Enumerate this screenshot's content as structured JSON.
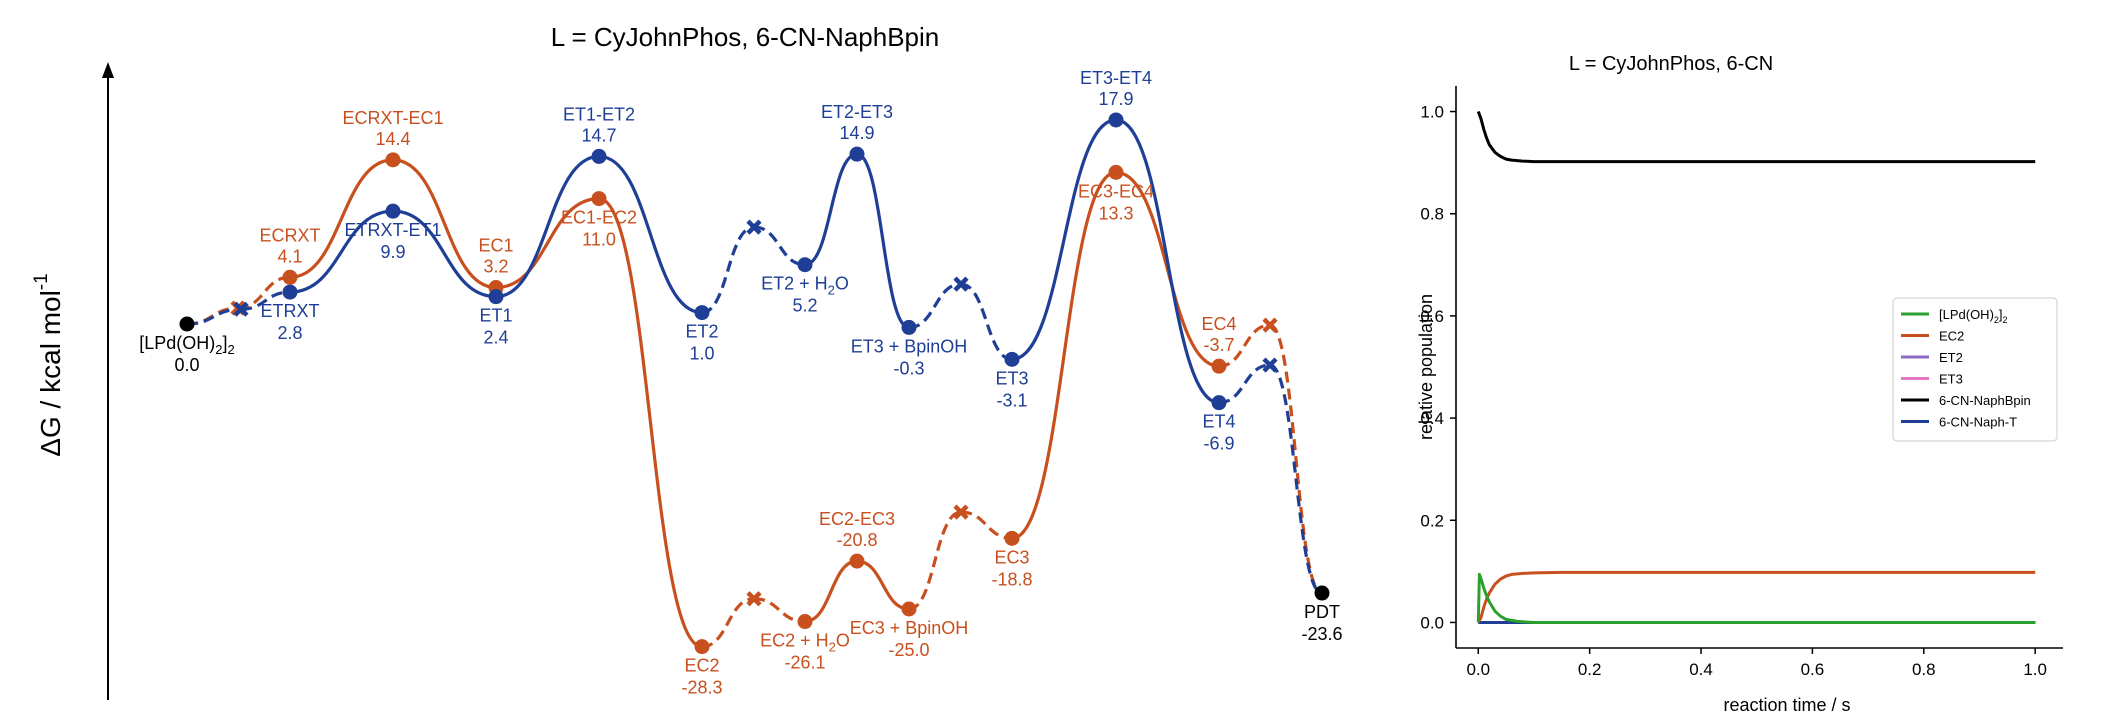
{
  "chart_data": [
    {
      "type": "energy-profile",
      "title": "L = CyJohnPhos, 6-CN-NaphBpin",
      "ylabel": "ΔG / kcal mol",
      "ylabel_superscript": "-1",
      "colors": {
        "EC": "#c8501e",
        "ET": "#1f3f96",
        "endpoint": "#000000"
      },
      "states": [
        {
          "id": "start",
          "name": "[LPd(OH)2]2",
          "sub": "2",
          "value": 0.0,
          "value_label": "0.0",
          "color": "endpoint",
          "label_side": "below",
          "kind": "point"
        },
        {
          "id": "ec-pre",
          "name": "",
          "value": 1.4,
          "color": "EC",
          "kind": "cross"
        },
        {
          "id": "et-pre",
          "name": "",
          "value": 1.3,
          "color": "ET",
          "kind": "cross"
        },
        {
          "id": "ecrxt",
          "name": "ECRXT",
          "value": 4.1,
          "value_label": "4.1",
          "color": "EC",
          "label_side": "above",
          "kind": "point"
        },
        {
          "id": "etrxt",
          "name": "ETRXT",
          "value": 2.8,
          "value_label": "2.8",
          "color": "ET",
          "label_side": "below",
          "kind": "point"
        },
        {
          "id": "ecrxt-ec1",
          "name": "ECRXT-EC1",
          "value": 14.4,
          "value_label": "14.4",
          "color": "EC",
          "label_side": "above",
          "kind": "point"
        },
        {
          "id": "etrxt-et1",
          "name": "ETRXT-ET1",
          "value": 9.9,
          "value_label": "9.9",
          "color": "ET",
          "label_side": "below",
          "kind": "point"
        },
        {
          "id": "ec1",
          "name": "EC1",
          "value": 3.2,
          "value_label": "3.2",
          "color": "EC",
          "label_side": "above",
          "kind": "point"
        },
        {
          "id": "et1",
          "name": "ET1",
          "value": 2.4,
          "value_label": "2.4",
          "color": "ET",
          "label_side": "below",
          "kind": "point"
        },
        {
          "id": "et1-et2",
          "name": "ET1-ET2",
          "value": 14.7,
          "value_label": "14.7",
          "color": "ET",
          "label_side": "above",
          "kind": "point"
        },
        {
          "id": "ec1-ec2",
          "name": "EC1-EC2",
          "value": 11.0,
          "value_label": "11.0",
          "color": "EC",
          "label_side": "below",
          "kind": "point"
        },
        {
          "id": "et2",
          "name": "ET2",
          "value": 1.0,
          "value_label": "1.0",
          "color": "ET",
          "label_side": "below",
          "kind": "point"
        },
        {
          "id": "ec2",
          "name": "EC2",
          "value": -28.3,
          "value_label": "-28.3",
          "color": "EC",
          "label_side": "below",
          "kind": "point"
        },
        {
          "id": "et2-x",
          "name": "",
          "value": 8.5,
          "color": "ET",
          "kind": "cross"
        },
        {
          "id": "ec2-x",
          "name": "",
          "value": -24.1,
          "color": "EC",
          "kind": "cross"
        },
        {
          "id": "et2-h2o",
          "name": "ET2 + H2O",
          "sub": "2",
          "value": 5.2,
          "value_label": "5.2",
          "color": "ET",
          "label_side": "below",
          "kind": "point"
        },
        {
          "id": "ec2-h2o",
          "name": "EC2 + H2O",
          "sub": "2",
          "value": -26.1,
          "value_label": "-26.1",
          "color": "EC",
          "label_side": "below",
          "kind": "point"
        },
        {
          "id": "et2-et3",
          "name": "ET2-ET3",
          "value": 14.9,
          "value_label": "14.9",
          "color": "ET",
          "label_side": "above",
          "kind": "point"
        },
        {
          "id": "ec2-ec3",
          "name": "EC2-EC3",
          "value": -20.8,
          "value_label": "-20.8",
          "color": "EC",
          "label_side": "above",
          "kind": "point"
        },
        {
          "id": "et3-bpinoh",
          "name": "ET3 + BpinOH",
          "value": -0.3,
          "value_label": "-0.3",
          "color": "ET",
          "label_side": "below",
          "kind": "point"
        },
        {
          "id": "ec3-bpinoh",
          "name": "EC3 + BpinOH",
          "value": -25.0,
          "value_label": "-25.0",
          "color": "EC",
          "label_side": "below",
          "kind": "point"
        },
        {
          "id": "et3-x",
          "name": "",
          "value": 3.5,
          "color": "ET",
          "kind": "cross"
        },
        {
          "id": "ec3-x",
          "name": "",
          "value": -16.5,
          "color": "EC",
          "kind": "cross"
        },
        {
          "id": "et3",
          "name": "ET3",
          "value": -3.1,
          "value_label": "-3.1",
          "color": "ET",
          "label_side": "below",
          "kind": "point"
        },
        {
          "id": "ec3",
          "name": "EC3",
          "value": -18.8,
          "value_label": "-18.8",
          "color": "EC",
          "label_side": "below",
          "kind": "point"
        },
        {
          "id": "et3-et4",
          "name": "ET3-ET4",
          "value": 17.9,
          "value_label": "17.9",
          "color": "ET",
          "label_side": "above",
          "kind": "point"
        },
        {
          "id": "ec3-ec4",
          "name": "EC3-EC4",
          "value": 13.3,
          "value_label": "13.3",
          "color": "EC",
          "label_side": "below",
          "kind": "point"
        },
        {
          "id": "ec4",
          "name": "EC4",
          "value": -3.7,
          "value_label": "-3.7",
          "color": "EC",
          "label_side": "above",
          "kind": "point"
        },
        {
          "id": "et4",
          "name": "ET4",
          "value": -6.9,
          "value_label": "-6.9",
          "color": "ET",
          "label_side": "below",
          "kind": "point"
        },
        {
          "id": "ec4-x",
          "name": "",
          "value": -0.1,
          "color": "EC",
          "kind": "cross"
        },
        {
          "id": "et4-x",
          "name": "",
          "value": -3.6,
          "color": "ET",
          "kind": "cross"
        },
        {
          "id": "pdt",
          "name": "PDT",
          "value": -23.6,
          "value_label": "-23.6",
          "color": "endpoint",
          "label_side": "below",
          "kind": "point"
        }
      ],
      "pathways": [
        {
          "name": "EC",
          "color": "EC",
          "segments": [
            [
              "start",
              "ec-pre",
              "dashed"
            ],
            [
              "ec-pre",
              "ecrxt",
              "dashed"
            ],
            [
              "ecrxt",
              "ecrxt-ec1",
              "solid"
            ],
            [
              "ecrxt-ec1",
              "ec1",
              "solid"
            ],
            [
              "ec1",
              "ec1-ec2",
              "solid"
            ],
            [
              "ec1-ec2",
              "ec2",
              "solid"
            ],
            [
              "ec2",
              "ec2-x",
              "dashed"
            ],
            [
              "ec2-x",
              "ec2-h2o",
              "dashed"
            ],
            [
              "ec2-h2o",
              "ec2-ec3",
              "solid"
            ],
            [
              "ec2-ec3",
              "ec3-bpinoh",
              "solid"
            ],
            [
              "ec3-bpinoh",
              "ec3-x",
              "dashed"
            ],
            [
              "ec3-x",
              "ec3",
              "dashed"
            ],
            [
              "ec3",
              "ec3-ec4",
              "solid"
            ],
            [
              "ec3-ec4",
              "ec4",
              "solid"
            ],
            [
              "ec4",
              "ec4-x",
              "dashed"
            ],
            [
              "ec4-x",
              "pdt",
              "dashed"
            ]
          ]
        },
        {
          "name": "ET",
          "color": "ET",
          "segments": [
            [
              "start",
              "et-pre",
              "dashed"
            ],
            [
              "et-pre",
              "etrxt",
              "dashed"
            ],
            [
              "etrxt",
              "etrxt-et1",
              "solid"
            ],
            [
              "etrxt-et1",
              "et1",
              "solid"
            ],
            [
              "et1",
              "et1-et2",
              "solid"
            ],
            [
              "et1-et2",
              "et2",
              "solid"
            ],
            [
              "et2",
              "et2-x",
              "dashed"
            ],
            [
              "et2-x",
              "et2-h2o",
              "dashed"
            ],
            [
              "et2-h2o",
              "et2-et3",
              "solid"
            ],
            [
              "et2-et3",
              "et3-bpinoh",
              "solid"
            ],
            [
              "et3-bpinoh",
              "et3-x",
              "dashed"
            ],
            [
              "et3-x",
              "et3",
              "dashed"
            ],
            [
              "et3",
              "et3-et4",
              "solid"
            ],
            [
              "et3-et4",
              "et4",
              "solid"
            ],
            [
              "et4",
              "et4-x",
              "dashed"
            ],
            [
              "et4-x",
              "pdt",
              "dashed"
            ]
          ]
        }
      ]
    },
    {
      "type": "line",
      "title": "L = CyJohnPhos, 6-CN",
      "xlabel": "reaction time / s",
      "ylabel": "relative population",
      "xlim": [
        -0.04,
        1.05
      ],
      "ylim": [
        -0.05,
        1.05
      ],
      "xticks": [
        0.0,
        0.2,
        0.4,
        0.6,
        0.8,
        1.0
      ],
      "xtick_labels": [
        "0.0",
        "0.2",
        "0.4",
        "0.6",
        "0.8",
        "1.0"
      ],
      "yticks": [
        0.0,
        0.2,
        0.4,
        0.6,
        0.8,
        1.0
      ],
      "ytick_labels": [
        "0.0",
        "0.2",
        "0.4",
        "0.6",
        "0.8",
        "1.0"
      ],
      "legend_placement": "right",
      "series": [
        {
          "name": "[LPd(OH)2]2",
          "color": "#2ca02c",
          "x": [
            0,
            0.002,
            0.005,
            0.01,
            0.015,
            0.02,
            0.03,
            0.04,
            0.05,
            0.07,
            0.1,
            0.2,
            0.5,
            1.0
          ],
          "y": [
            0,
            0.094,
            0.085,
            0.067,
            0.052,
            0.04,
            0.022,
            0.012,
            0.006,
            0.002,
            0.0,
            0.0,
            0.0,
            0.0
          ]
        },
        {
          "name": "EC2",
          "color": "#c8501e",
          "x": [
            0,
            0.005,
            0.01,
            0.015,
            0.02,
            0.03,
            0.04,
            0.05,
            0.06,
            0.08,
            0.1,
            0.15,
            0.2,
            0.5,
            1.0
          ],
          "y": [
            0,
            0.01,
            0.03,
            0.046,
            0.058,
            0.075,
            0.085,
            0.091,
            0.094,
            0.096,
            0.097,
            0.098,
            0.098,
            0.098,
            0.098
          ]
        },
        {
          "name": "ET2",
          "color": "#8c6bc4",
          "x": [
            0,
            0.5,
            1.0
          ],
          "y": [
            0.0,
            0.0,
            0.0
          ]
        },
        {
          "name": "ET3",
          "color": "#e377c2",
          "x": [
            0,
            0.5,
            1.0
          ],
          "y": [
            0.0,
            0.0,
            0.0
          ]
        },
        {
          "name": "6-CN-NaphBpin",
          "color": "#000000",
          "x": [
            0,
            0.005,
            0.01,
            0.015,
            0.02,
            0.03,
            0.04,
            0.05,
            0.06,
            0.08,
            0.1,
            0.15,
            0.2,
            0.5,
            1.0
          ],
          "y": [
            1.0,
            0.985,
            0.965,
            0.948,
            0.935,
            0.92,
            0.912,
            0.907,
            0.905,
            0.903,
            0.902,
            0.902,
            0.902,
            0.902,
            0.902
          ]
        },
        {
          "name": "6-CN-Naph-T",
          "color": "#1f3f96",
          "x": [
            0,
            0.5,
            1.0
          ],
          "y": [
            0.0,
            0.0,
            0.0
          ]
        }
      ]
    }
  ]
}
